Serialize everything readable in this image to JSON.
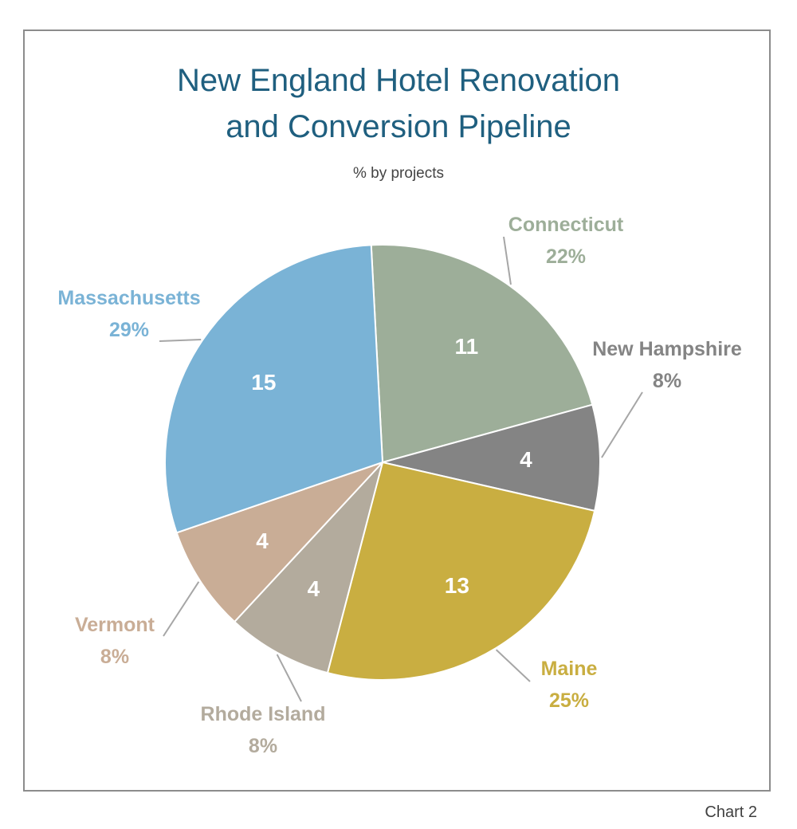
{
  "chart_data": {
    "type": "pie",
    "title_line1": "New England Hotel Renovation",
    "title_line2": "and Conversion Pipeline",
    "subtitle": "% by projects",
    "footer": "Chart 2",
    "slices": [
      {
        "name": "Connecticut",
        "value": 11,
        "value_label": "11",
        "percent_label": "22%",
        "color": "#9dae99"
      },
      {
        "name": "New Hampshire",
        "value": 4,
        "value_label": "4",
        "percent_label": "8%",
        "color": "#848484"
      },
      {
        "name": "Maine",
        "value": 13,
        "value_label": "13",
        "percent_label": "25%",
        "color": "#c9ae41"
      },
      {
        "name": "Rhode Island",
        "value": 4,
        "value_label": "4",
        "percent_label": "8%",
        "color": "#b3ab9d"
      },
      {
        "name": "Vermont",
        "value": 4,
        "value_label": "4",
        "percent_label": "8%",
        "color": "#c9ad96"
      },
      {
        "name": "Massachusetts",
        "value": 15,
        "value_label": "15",
        "percent_label": "29%",
        "color": "#7ab3d6"
      }
    ],
    "legend": "none"
  }
}
